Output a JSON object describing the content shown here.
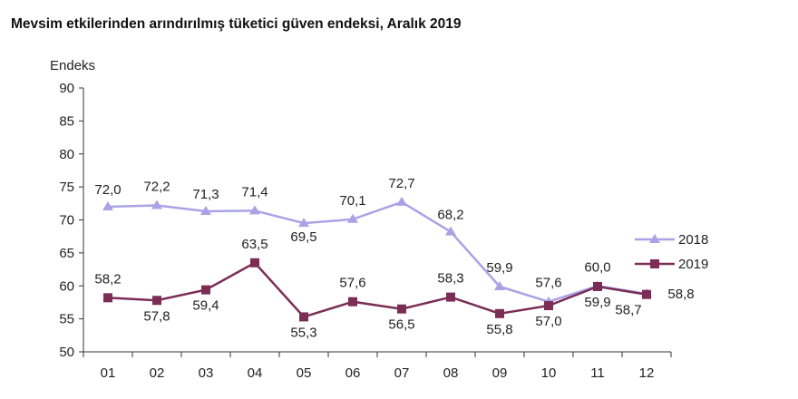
{
  "chart_data": {
    "type": "line",
    "title": "Mevsim etkilerinden arındırılmış tüketici güven endeksi, Aralık 2019",
    "ylabel": "Endeks",
    "xlabel": "",
    "categories": [
      "01",
      "02",
      "03",
      "04",
      "05",
      "06",
      "07",
      "08",
      "09",
      "10",
      "11",
      "12"
    ],
    "ylim": [
      50,
      90
    ],
    "yticks": [
      50,
      55,
      60,
      65,
      70,
      75,
      80,
      85,
      90
    ],
    "grid": false,
    "legend": "right",
    "series": [
      {
        "name": "2018",
        "color": "#a9a3e6",
        "marker": "triangle",
        "values": [
          72.0,
          72.2,
          71.3,
          71.4,
          69.5,
          70.1,
          72.7,
          68.2,
          59.9,
          57.6,
          60.0,
          58.8
        ],
        "labels": [
          "72,0",
          "72,2",
          "71,3",
          "71,4",
          "69,5",
          "70,1",
          "72,7",
          "68,2",
          "59,9",
          "57,6",
          "60,0",
          "58,8"
        ]
      },
      {
        "name": "2019",
        "color": "#7b2d55",
        "marker": "square",
        "values": [
          58.2,
          57.8,
          59.4,
          63.5,
          55.3,
          57.6,
          56.5,
          58.3,
          55.8,
          57.0,
          59.9,
          58.7
        ],
        "labels": [
          "58,2",
          "57,8",
          "59,4",
          "63,5",
          "55,3",
          "57,6",
          "56,5",
          "58,3",
          "55,8",
          "57,0",
          "59,9",
          "58,7"
        ]
      }
    ]
  }
}
